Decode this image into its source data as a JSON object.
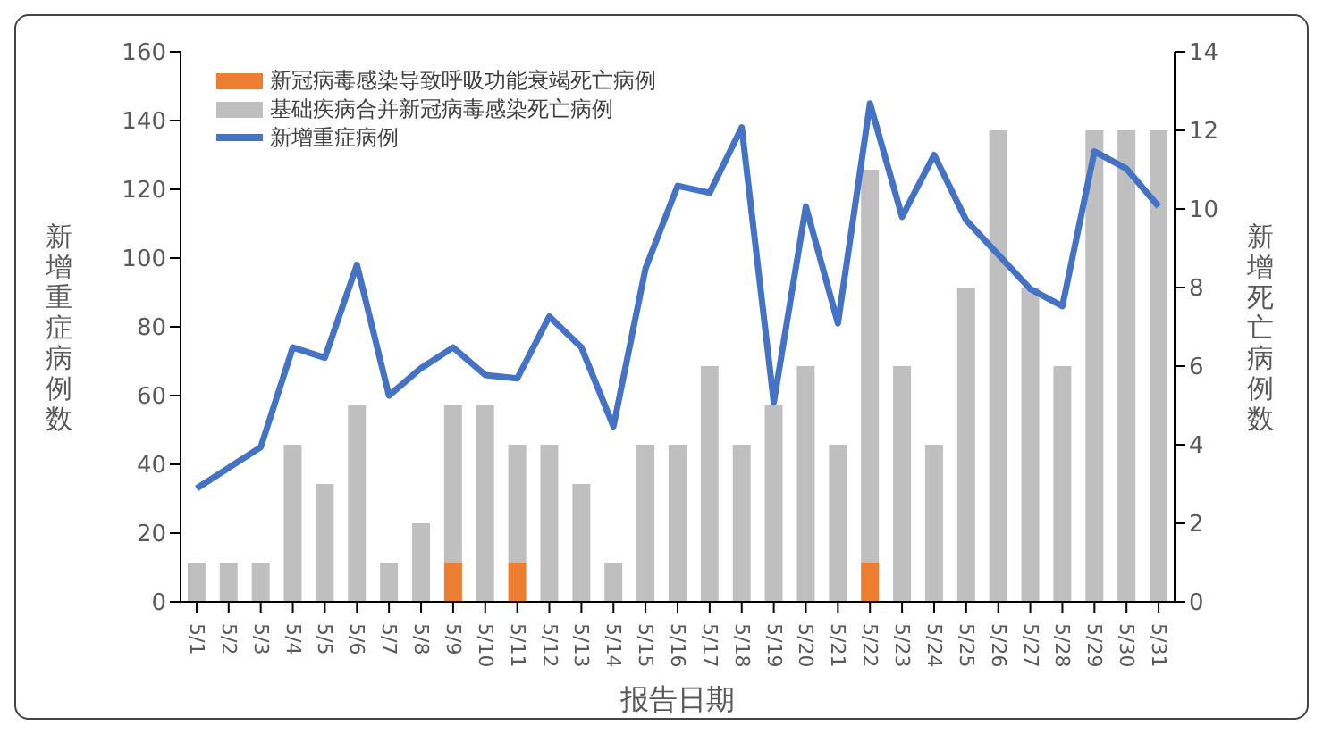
{
  "chart_data": {
    "type": "bar",
    "xlabel": "报告日期",
    "ylabel": "新增重症病例数",
    "y2label": "新增死亡病例数",
    "categories": [
      "5/1",
      "5/2",
      "5/3",
      "5/4",
      "5/5",
      "5/6",
      "5/7",
      "5/8",
      "5/9",
      "5/10",
      "5/11",
      "5/12",
      "5/13",
      "5/14",
      "5/15",
      "5/16",
      "5/17",
      "5/18",
      "5/19",
      "5/20",
      "5/21",
      "5/22",
      "5/23",
      "5/24",
      "5/25",
      "5/26",
      "5/27",
      "5/28",
      "5/29",
      "5/30",
      "5/31"
    ],
    "series": [
      {
        "name": "新冠病毒感染导致呼吸功能衰竭死亡病例",
        "axis": "y2",
        "color": "#ed7d31",
        "values": [
          0,
          0,
          0,
          0,
          0,
          0,
          0,
          0,
          1,
          0,
          1,
          0,
          0,
          0,
          0,
          0,
          0,
          0,
          0,
          0,
          0,
          1,
          0,
          0,
          0,
          0,
          0,
          0,
          0,
          0,
          0
        ]
      },
      {
        "name": "基础疾病合并新冠病毒感染死亡病例",
        "axis": "y2",
        "color": "#bfbfbf",
        "values": [
          1,
          1,
          1,
          4,
          3,
          5,
          1,
          2,
          4,
          5,
          3,
          4,
          3,
          1,
          4,
          4,
          6,
          4,
          5,
          6,
          4,
          10,
          6,
          4,
          8,
          12,
          8,
          6,
          12,
          12,
          12
        ]
      },
      {
        "name": "新增重症病例",
        "type": "line",
        "axis": "y",
        "color": "#4472c4",
        "values": [
          33,
          39,
          45,
          74,
          71,
          98,
          60,
          68,
          74,
          66,
          65,
          83,
          74,
          51,
          97,
          121,
          119,
          138,
          58,
          115,
          81,
          145,
          112,
          130,
          111,
          101,
          91,
          86,
          131,
          126,
          115
        ]
      }
    ],
    "stacked": true,
    "ylim": [
      0,
      160
    ],
    "yticks": [
      0,
      20,
      40,
      60,
      80,
      100,
      120,
      140,
      160
    ],
    "y2lim": [
      0,
      14
    ],
    "y2ticks": [
      0,
      2,
      4,
      6,
      8,
      10,
      12,
      14
    ],
    "grid": false,
    "legend": "top left",
    "marker": "none",
    "line_style": "solid"
  }
}
